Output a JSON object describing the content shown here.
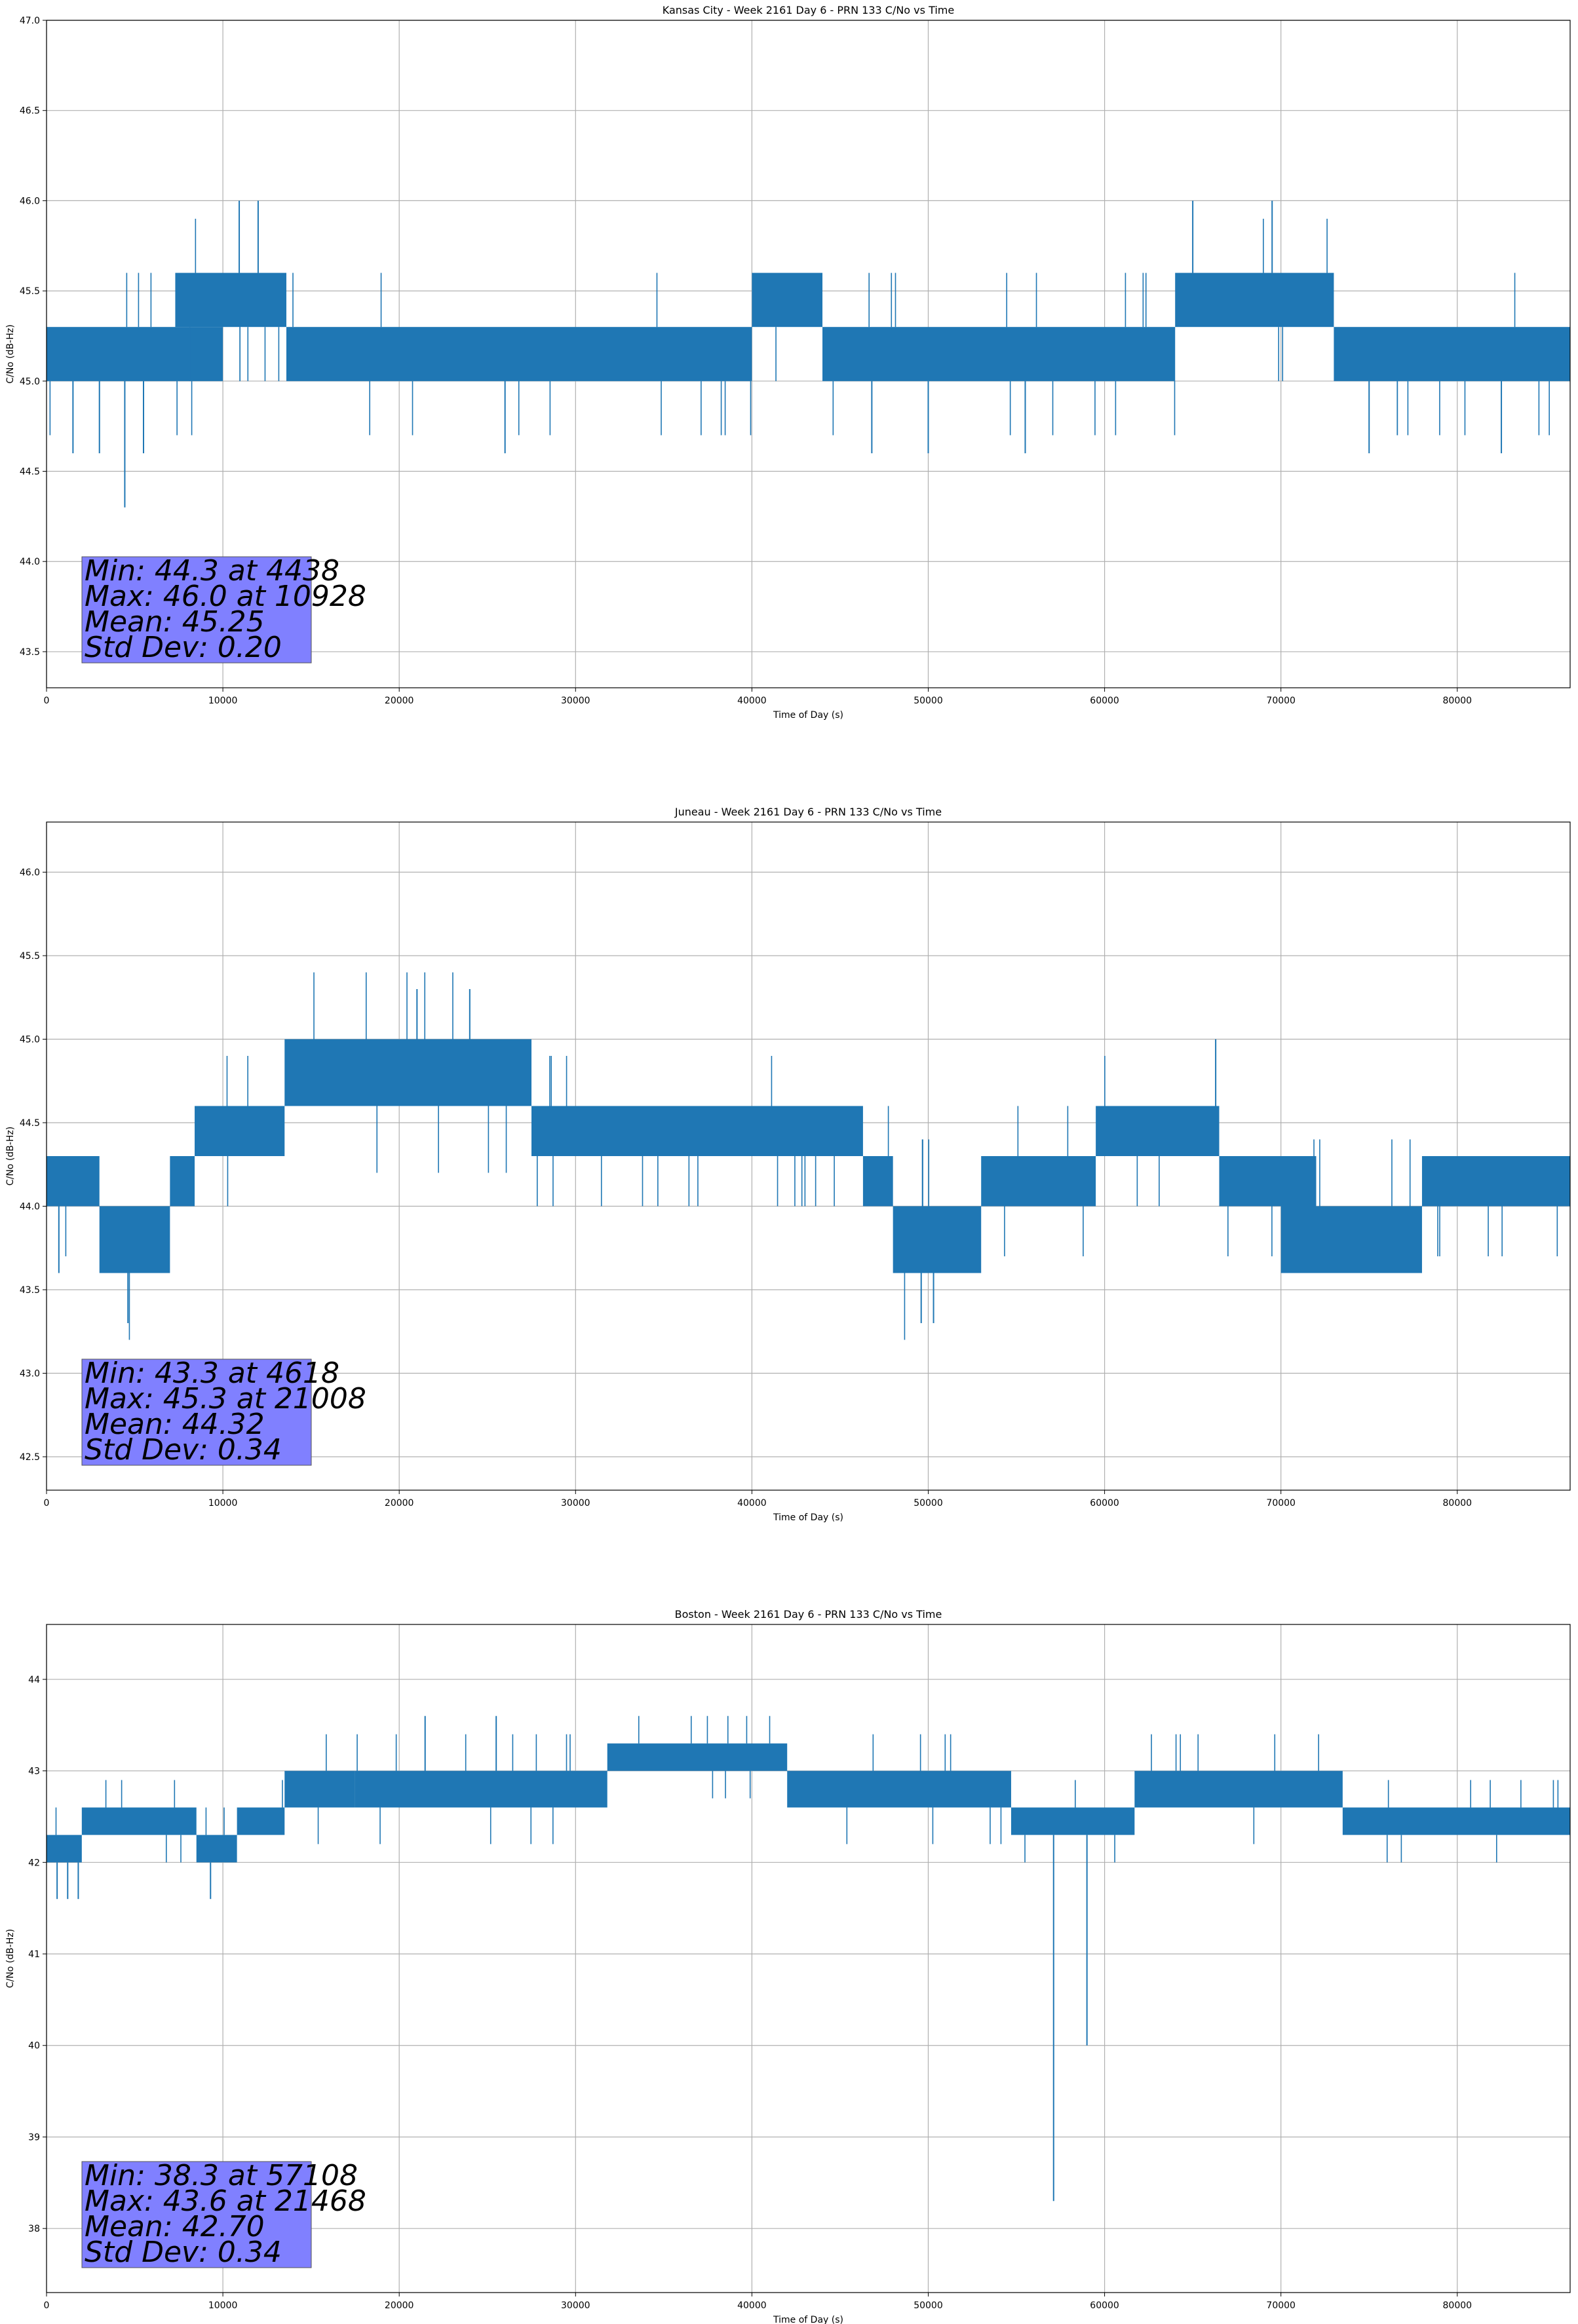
{
  "chart_data": [
    {
      "type": "line",
      "title": "Kansas City - Week 2161 Day 6 - PRN 133 C/No vs Time",
      "xlabel": "Time of Day (s)",
      "ylabel": "C/No (dB-Hz)",
      "xlim": [
        0,
        86400
      ],
      "ylim": [
        43.3,
        47.0
      ],
      "xticks": [
        0,
        10000,
        20000,
        30000,
        40000,
        50000,
        60000,
        70000,
        80000
      ],
      "yticks": [
        43.5,
        44.0,
        44.5,
        45.0,
        45.5,
        46.0,
        46.5,
        47.0
      ],
      "ytick_decimals": 1,
      "grid": true,
      "series_color": "#1f77b4",
      "segments": [
        {
          "x0": 0,
          "x1": 10000,
          "lo": 45.0,
          "hi": 45.3
        },
        {
          "x0": 7300,
          "x1": 13600,
          "lo": 45.3,
          "hi": 45.6
        },
        {
          "x0": 13600,
          "x1": 40000,
          "lo": 45.0,
          "hi": 45.3
        },
        {
          "x0": 40000,
          "x1": 44000,
          "lo": 45.3,
          "hi": 45.6
        },
        {
          "x0": 44000,
          "x1": 64000,
          "lo": 45.0,
          "hi": 45.3
        },
        {
          "x0": 64000,
          "x1": 73000,
          "lo": 45.3,
          "hi": 45.6
        },
        {
          "x0": 73000,
          "x1": 86400,
          "lo": 45.0,
          "hi": 45.3
        }
      ],
      "extremes": [
        {
          "x": 4438,
          "value": 44.3
        },
        {
          "x": 10928,
          "value": 46.0
        },
        {
          "x": 12000,
          "value": 46.0
        },
        {
          "x": 65000,
          "value": 46.0
        },
        {
          "x": 69500,
          "value": 46.0
        },
        {
          "x": 1500,
          "value": 44.6
        },
        {
          "x": 3000,
          "value": 44.6
        },
        {
          "x": 5500,
          "value": 44.6
        },
        {
          "x": 26000,
          "value": 44.6
        },
        {
          "x": 46800,
          "value": 44.6
        },
        {
          "x": 50000,
          "value": 44.6
        },
        {
          "x": 55500,
          "value": 44.6
        },
        {
          "x": 75000,
          "value": 44.6
        },
        {
          "x": 82500,
          "value": 44.6
        }
      ],
      "stats": {
        "min": "Min: 44.3 at 4438",
        "max": "Max: 46.0 at 10928",
        "mean": "Mean: 45.25",
        "std": "Std Dev: 0.20"
      }
    },
    {
      "type": "line",
      "title": "Juneau - Week 2161 Day 6 - PRN 133 C/No vs Time",
      "xlabel": "Time of Day (s)",
      "ylabel": "C/No (dB-Hz)",
      "xlim": [
        0,
        86400
      ],
      "ylim": [
        42.3,
        46.3
      ],
      "xticks": [
        0,
        10000,
        20000,
        30000,
        40000,
        50000,
        60000,
        70000,
        80000
      ],
      "yticks": [
        42.5,
        43.0,
        43.5,
        44.0,
        44.5,
        45.0,
        45.5,
        46.0
      ],
      "ytick_decimals": 1,
      "grid": true,
      "series_color": "#1f77b4",
      "segments": [
        {
          "x0": 0,
          "x1": 3000,
          "lo": 44.0,
          "hi": 44.3
        },
        {
          "x0": 3000,
          "x1": 7000,
          "lo": 43.6,
          "hi": 44.0
        },
        {
          "x0": 7000,
          "x1": 8400,
          "lo": 44.0,
          "hi": 44.3
        },
        {
          "x0": 8400,
          "x1": 13500,
          "lo": 44.3,
          "hi": 44.6
        },
        {
          "x0": 13500,
          "x1": 27500,
          "lo": 44.6,
          "hi": 45.0
        },
        {
          "x0": 27500,
          "x1": 46300,
          "lo": 44.3,
          "hi": 44.6
        },
        {
          "x0": 46300,
          "x1": 48000,
          "lo": 44.0,
          "hi": 44.3
        },
        {
          "x0": 48000,
          "x1": 53000,
          "lo": 43.6,
          "hi": 44.0
        },
        {
          "x0": 53000,
          "x1": 59500,
          "lo": 44.0,
          "hi": 44.3
        },
        {
          "x0": 59500,
          "x1": 66500,
          "lo": 44.3,
          "hi": 44.6
        },
        {
          "x0": 66500,
          "x1": 72000,
          "lo": 44.0,
          "hi": 44.3
        },
        {
          "x0": 70000,
          "x1": 78000,
          "lo": 43.6,
          "hi": 44.0
        },
        {
          "x0": 78000,
          "x1": 86400,
          "lo": 44.0,
          "hi": 44.3
        }
      ],
      "extremes": [
        {
          "x": 4618,
          "value": 43.3
        },
        {
          "x": 21008,
          "value": 45.3
        },
        {
          "x": 24000,
          "value": 45.3
        },
        {
          "x": 49600,
          "value": 43.3
        },
        {
          "x": 50300,
          "value": 43.3
        },
        {
          "x": 66300,
          "value": 45.0
        },
        {
          "x": 700,
          "value": 43.6
        }
      ],
      "stats": {
        "min": "Min: 43.3 at 4618",
        "max": "Max: 45.3 at 21008",
        "mean": "Mean: 44.32",
        "std": "Std Dev: 0.34"
      }
    },
    {
      "type": "line",
      "title": "Boston - Week 2161 Day 6 - PRN 133 C/No vs Time",
      "xlabel": "Time of Day (s)",
      "ylabel": "C/No (dB-Hz)",
      "xlim": [
        0,
        86400
      ],
      "ylim": [
        37.3,
        44.6
      ],
      "xticks": [
        0,
        10000,
        20000,
        30000,
        40000,
        50000,
        60000,
        70000,
        80000
      ],
      "yticks": [
        38,
        39,
        40,
        41,
        42,
        43,
        44
      ],
      "ytick_decimals": 0,
      "grid": true,
      "series_color": "#1f77b4",
      "segments": [
        {
          "x0": 0,
          "x1": 2000,
          "lo": 42.0,
          "hi": 42.3
        },
        {
          "x0": 2000,
          "x1": 8500,
          "lo": 42.3,
          "hi": 42.6
        },
        {
          "x0": 8500,
          "x1": 10800,
          "lo": 42.0,
          "hi": 42.3
        },
        {
          "x0": 10800,
          "x1": 13500,
          "lo": 42.3,
          "hi": 42.6
        },
        {
          "x0": 13500,
          "x1": 17500,
          "lo": 42.6,
          "hi": 43.0
        },
        {
          "x0": 17500,
          "x1": 31800,
          "lo": 42.6,
          "hi": 43.0
        },
        {
          "x0": 31800,
          "x1": 42000,
          "lo": 43.0,
          "hi": 43.3
        },
        {
          "x0": 42000,
          "x1": 54700,
          "lo": 42.6,
          "hi": 43.0
        },
        {
          "x0": 54700,
          "x1": 61700,
          "lo": 42.3,
          "hi": 42.6
        },
        {
          "x0": 61700,
          "x1": 73500,
          "lo": 42.6,
          "hi": 43.0
        },
        {
          "x0": 73500,
          "x1": 86400,
          "lo": 42.3,
          "hi": 42.6
        }
      ],
      "extremes": [
        {
          "x": 57108,
          "value": 38.3
        },
        {
          "x": 59000,
          "value": 40.0
        },
        {
          "x": 21468,
          "value": 43.6
        },
        {
          "x": 25500,
          "value": 43.6
        },
        {
          "x": 9300,
          "value": 41.6
        },
        {
          "x": 600,
          "value": 41.6
        },
        {
          "x": 1200,
          "value": 41.6
        },
        {
          "x": 1800,
          "value": 41.6
        }
      ],
      "stats": {
        "min": "Min: 38.3 at 57108",
        "max": "Max: 43.6 at 21468",
        "mean": "Mean: 42.70",
        "std": "Std Dev: 0.34"
      }
    }
  ]
}
